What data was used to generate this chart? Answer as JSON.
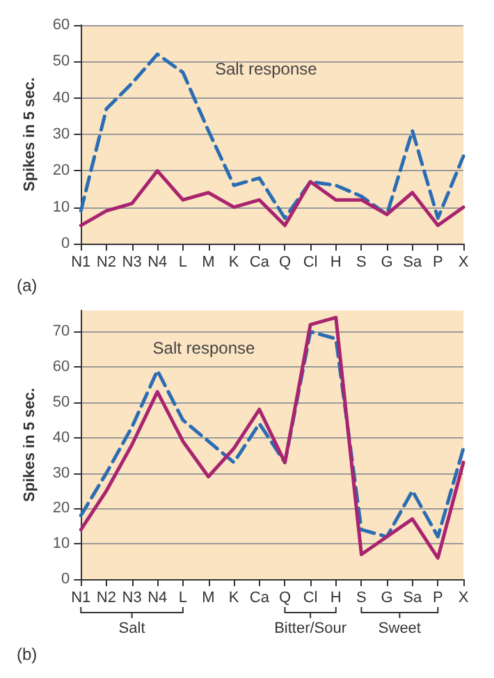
{
  "chart_data": [
    {
      "type": "line",
      "ylabel": "Spikes in 5 sec.",
      "categories": [
        "N1",
        "N2",
        "N3",
        "N4",
        "L",
        "M",
        "K",
        "Ca",
        "Q",
        "Cl",
        "H",
        "S",
        "G",
        "Sa",
        "P",
        "X"
      ],
      "series": [
        {
          "color": "#2b6db3",
          "line_style": "dashed",
          "values": [
            9,
            37,
            44,
            52,
            47,
            31,
            16,
            18,
            7,
            17,
            16,
            13,
            8,
            31,
            7,
            24
          ]
        },
        {
          "color": "#a8246f",
          "line_style": "solid",
          "values": [
            5,
            9,
            11,
            20,
            12,
            14,
            10,
            12,
            5,
            17,
            12,
            12,
            8,
            14,
            5,
            10
          ]
        }
      ],
      "ylim": [
        0,
        60
      ],
      "yticks": [
        0,
        10,
        20,
        30,
        40,
        50,
        60
      ],
      "grid": "y",
      "marker": "none",
      "annotations": [
        "Salt response",
        "(a)"
      ]
    },
    {
      "type": "line",
      "ylabel": "Spikes in 5 sec.",
      "categories": [
        "N1",
        "N2",
        "N3",
        "N4",
        "L",
        "M",
        "K",
        "Ca",
        "Q",
        "Cl",
        "H",
        "S",
        "G",
        "Sa",
        "P",
        "X"
      ],
      "series": [
        {
          "color": "#2b6db3",
          "line_style": "dashed",
          "values": [
            18,
            30,
            43,
            59,
            45,
            39,
            33,
            44,
            33,
            70,
            68,
            14,
            12,
            25,
            12,
            37
          ]
        },
        {
          "color": "#a8246f",
          "line_style": "solid",
          "values": [
            14,
            25,
            38,
            53,
            39,
            29,
            37,
            48,
            33,
            72,
            74,
            7,
            12,
            17,
            6,
            33
          ]
        }
      ],
      "ylim": [
        0,
        76
      ],
      "yticks": [
        0,
        10,
        20,
        30,
        40,
        50,
        60,
        70
      ],
      "grid": "y",
      "marker": "none",
      "annotations": [
        "Salt response",
        "Salt",
        "Bitter/Sour",
        "Sweet",
        "(b)"
      ]
    }
  ]
}
